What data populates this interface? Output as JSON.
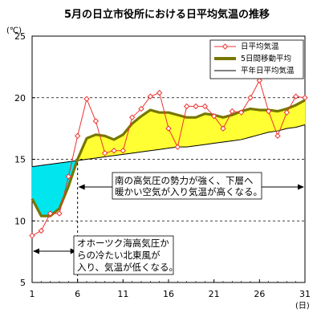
{
  "chart_data": {
    "type": "line",
    "title": "5月の日立市役所における日平均気温の推移",
    "ylabel": "(℃)",
    "xlabel": "(日)",
    "xlim": [
      1,
      31
    ],
    "ylim": [
      5,
      25
    ],
    "x_ticks": [
      "1",
      "6",
      "11",
      "16",
      "21",
      "26",
      "31"
    ],
    "y_ticks": [
      "5",
      "10",
      "15",
      "20",
      "25"
    ],
    "gridlines": "dashed horizontal at 10, 15, 20",
    "legend_position": "top-right",
    "x": [
      1,
      2,
      3,
      4,
      5,
      6,
      7,
      8,
      9,
      10,
      11,
      12,
      13,
      14,
      15,
      16,
      17,
      18,
      19,
      20,
      21,
      22,
      23,
      24,
      25,
      26,
      27,
      28,
      29,
      30,
      31
    ],
    "series": [
      {
        "name": "日平均気温",
        "color": "#ee3333",
        "marker": "diamond",
        "values": [
          8.8,
          9.2,
          10.6,
          10.6,
          13.6,
          16.9,
          19.9,
          18.1,
          15.5,
          15.7,
          15.7,
          18.4,
          19.1,
          20.1,
          20.4,
          17.5,
          16.0,
          19.3,
          19.3,
          19.3,
          18.5,
          17.5,
          18.9,
          18.8,
          20.0,
          21.4,
          18.9,
          16.9,
          18.8,
          20.1,
          20.0
        ]
      },
      {
        "name": "5日間移動平均",
        "color": "#777700",
        "values": [
          11.8,
          10.4,
          10.4,
          11.0,
          12.8,
          15.0,
          16.7,
          17.0,
          16.9,
          16.6,
          17.0,
          17.9,
          18.5,
          19.0,
          18.8,
          18.8,
          18.6,
          18.4,
          18.4,
          18.7,
          18.6,
          18.4,
          18.6,
          18.9,
          19.1,
          19.0,
          19.0,
          18.9,
          19.1,
          19.4,
          19.8
        ]
      },
      {
        "name": "平年日平均気温",
        "color": "#000000",
        "values": [
          14.4,
          14.5,
          14.6,
          14.7,
          14.8,
          14.9,
          15.0,
          15.1,
          15.2,
          15.3,
          15.4,
          15.5,
          15.6,
          15.7,
          15.8,
          15.9,
          16.0,
          16.0,
          16.1,
          16.2,
          16.3,
          16.4,
          16.5,
          16.6,
          16.8,
          17.0,
          17.2,
          17.3,
          17.5,
          17.6,
          17.8
        ]
      }
    ],
    "fills": {
      "cooler_than_normal": "#00e5ee",
      "warmer_than_normal": "#ffff33"
    },
    "annotations": [
      {
        "lines": [
          "南の高気圧の勢力が強く、下層へ",
          "暖かい空気が入り気温が高くなる。"
        ],
        "x_range": [
          6,
          31
        ]
      },
      {
        "lines": [
          "オホーツク海高気圧か",
          "らの冷たい北東風が",
          "入り、気温が低くなる。"
        ],
        "x_range": [
          1,
          6
        ]
      }
    ]
  }
}
